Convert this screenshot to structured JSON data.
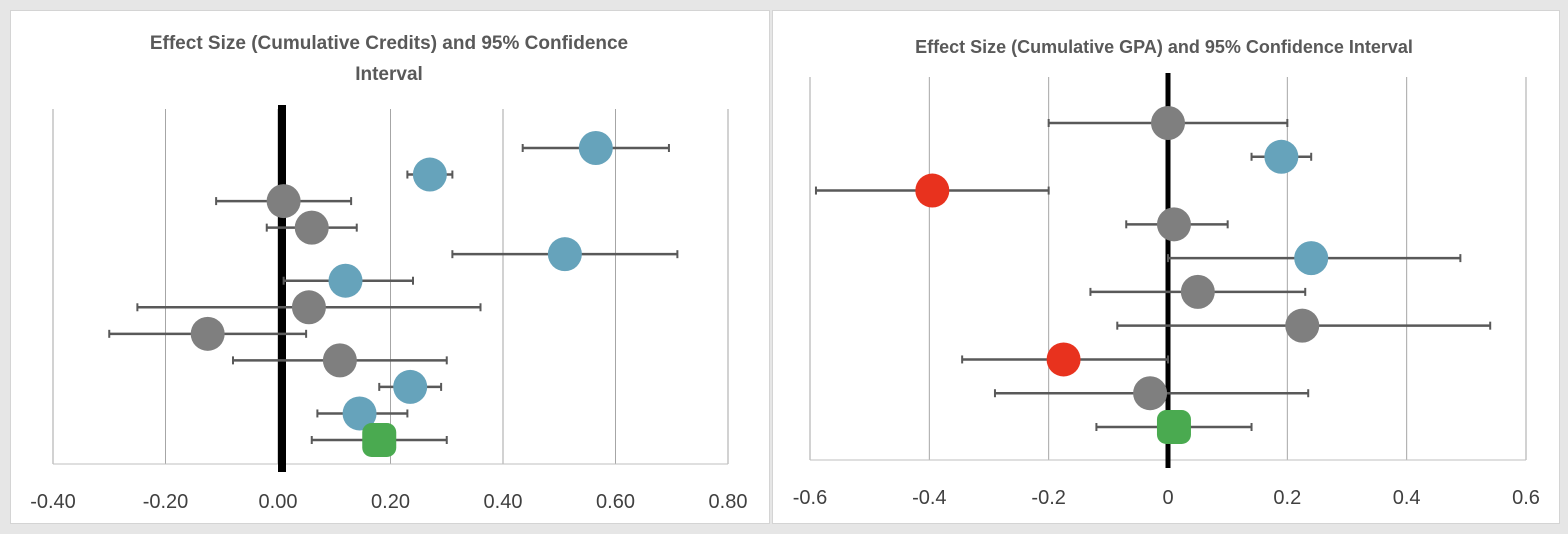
{
  "chart_data": [
    {
      "type": "scatter",
      "title_lines": [
        "Effect Size (Cumulative Credits) and 95% Confidence",
        "Interval"
      ],
      "xlabel": "",
      "ylabel": "",
      "xlim": [
        -0.4,
        0.8
      ],
      "x_ticks": [
        "-0.40",
        "-0.20",
        "0.00",
        "0.20",
        "0.40",
        "0.60",
        "0.80"
      ],
      "tick_values": [
        -0.4,
        -0.2,
        0.0,
        0.2,
        0.4,
        0.6,
        0.8
      ],
      "grid": true,
      "zero_line": true,
      "colors": {
        "gray": "#7f7f7f",
        "blue": "#66a3bb",
        "red": "#e8321e",
        "green": "#4aaa50",
        "error_bar": "#595959",
        "grid": "#a6a6a6"
      },
      "points": [
        {
          "value": 0.565,
          "lower": 0.435,
          "upper": 0.695,
          "color": "blue",
          "marker": "circle"
        },
        {
          "value": 0.27,
          "lower": 0.23,
          "upper": 0.31,
          "color": "blue",
          "marker": "circle"
        },
        {
          "value": 0.01,
          "lower": -0.11,
          "upper": 0.13,
          "color": "gray",
          "marker": "circle"
        },
        {
          "value": 0.06,
          "lower": -0.02,
          "upper": 0.14,
          "color": "gray",
          "marker": "circle"
        },
        {
          "value": 0.51,
          "lower": 0.31,
          "upper": 0.71,
          "color": "blue",
          "marker": "circle"
        },
        {
          "value": 0.12,
          "lower": 0.01,
          "upper": 0.24,
          "color": "blue",
          "marker": "circle"
        },
        {
          "value": 0.055,
          "lower": -0.25,
          "upper": 0.36,
          "color": "gray",
          "marker": "circle"
        },
        {
          "value": -0.125,
          "lower": -0.3,
          "upper": 0.05,
          "color": "gray",
          "marker": "circle"
        },
        {
          "value": 0.11,
          "lower": -0.08,
          "upper": 0.3,
          "color": "gray",
          "marker": "circle"
        },
        {
          "value": 0.235,
          "lower": 0.18,
          "upper": 0.29,
          "color": "blue",
          "marker": "circle"
        },
        {
          "value": 0.145,
          "lower": 0.07,
          "upper": 0.23,
          "color": "blue",
          "marker": "circle"
        },
        {
          "value": 0.18,
          "lower": 0.06,
          "upper": 0.3,
          "color": "green",
          "marker": "rounded-square"
        }
      ]
    },
    {
      "type": "scatter",
      "title_lines": [
        "Effect Size (Cumulative GPA) and 95% Confidence Interval"
      ],
      "xlabel": "",
      "ylabel": "",
      "xlim": [
        -0.6,
        0.6
      ],
      "x_ticks": [
        "-0.6",
        "-0.4",
        "-0.2",
        "0",
        "0.2",
        "0.4",
        "0.6"
      ],
      "tick_values": [
        -0.6,
        -0.4,
        -0.2,
        0.0,
        0.2,
        0.4,
        0.6
      ],
      "grid": true,
      "zero_line": true,
      "colors": {
        "gray": "#7f7f7f",
        "blue": "#66a3bb",
        "red": "#e8321e",
        "green": "#4aaa50",
        "error_bar": "#595959",
        "grid": "#a6a6a6"
      },
      "points": [
        {
          "value": 0.0,
          "lower": -0.2,
          "upper": 0.2,
          "color": "gray",
          "marker": "circle"
        },
        {
          "value": 0.19,
          "lower": 0.14,
          "upper": 0.24,
          "color": "blue",
          "marker": "circle"
        },
        {
          "value": -0.395,
          "lower": -0.59,
          "upper": -0.2,
          "color": "red",
          "marker": "circle"
        },
        {
          "value": 0.01,
          "lower": -0.07,
          "upper": 0.1,
          "color": "gray",
          "marker": "circle"
        },
        {
          "value": 0.24,
          "lower": 0.0,
          "upper": 0.49,
          "color": "blue",
          "marker": "circle"
        },
        {
          "value": 0.05,
          "lower": -0.13,
          "upper": 0.23,
          "color": "gray",
          "marker": "circle"
        },
        {
          "value": 0.225,
          "lower": -0.085,
          "upper": 0.54,
          "color": "gray",
          "marker": "circle"
        },
        {
          "value": -0.175,
          "lower": -0.345,
          "upper": 0.0,
          "color": "red",
          "marker": "circle"
        },
        {
          "value": -0.03,
          "lower": -0.29,
          "upper": 0.235,
          "color": "gray",
          "marker": "circle"
        },
        {
          "value": 0.01,
          "lower": -0.12,
          "upper": 0.14,
          "color": "green",
          "marker": "rounded-square"
        }
      ]
    }
  ]
}
